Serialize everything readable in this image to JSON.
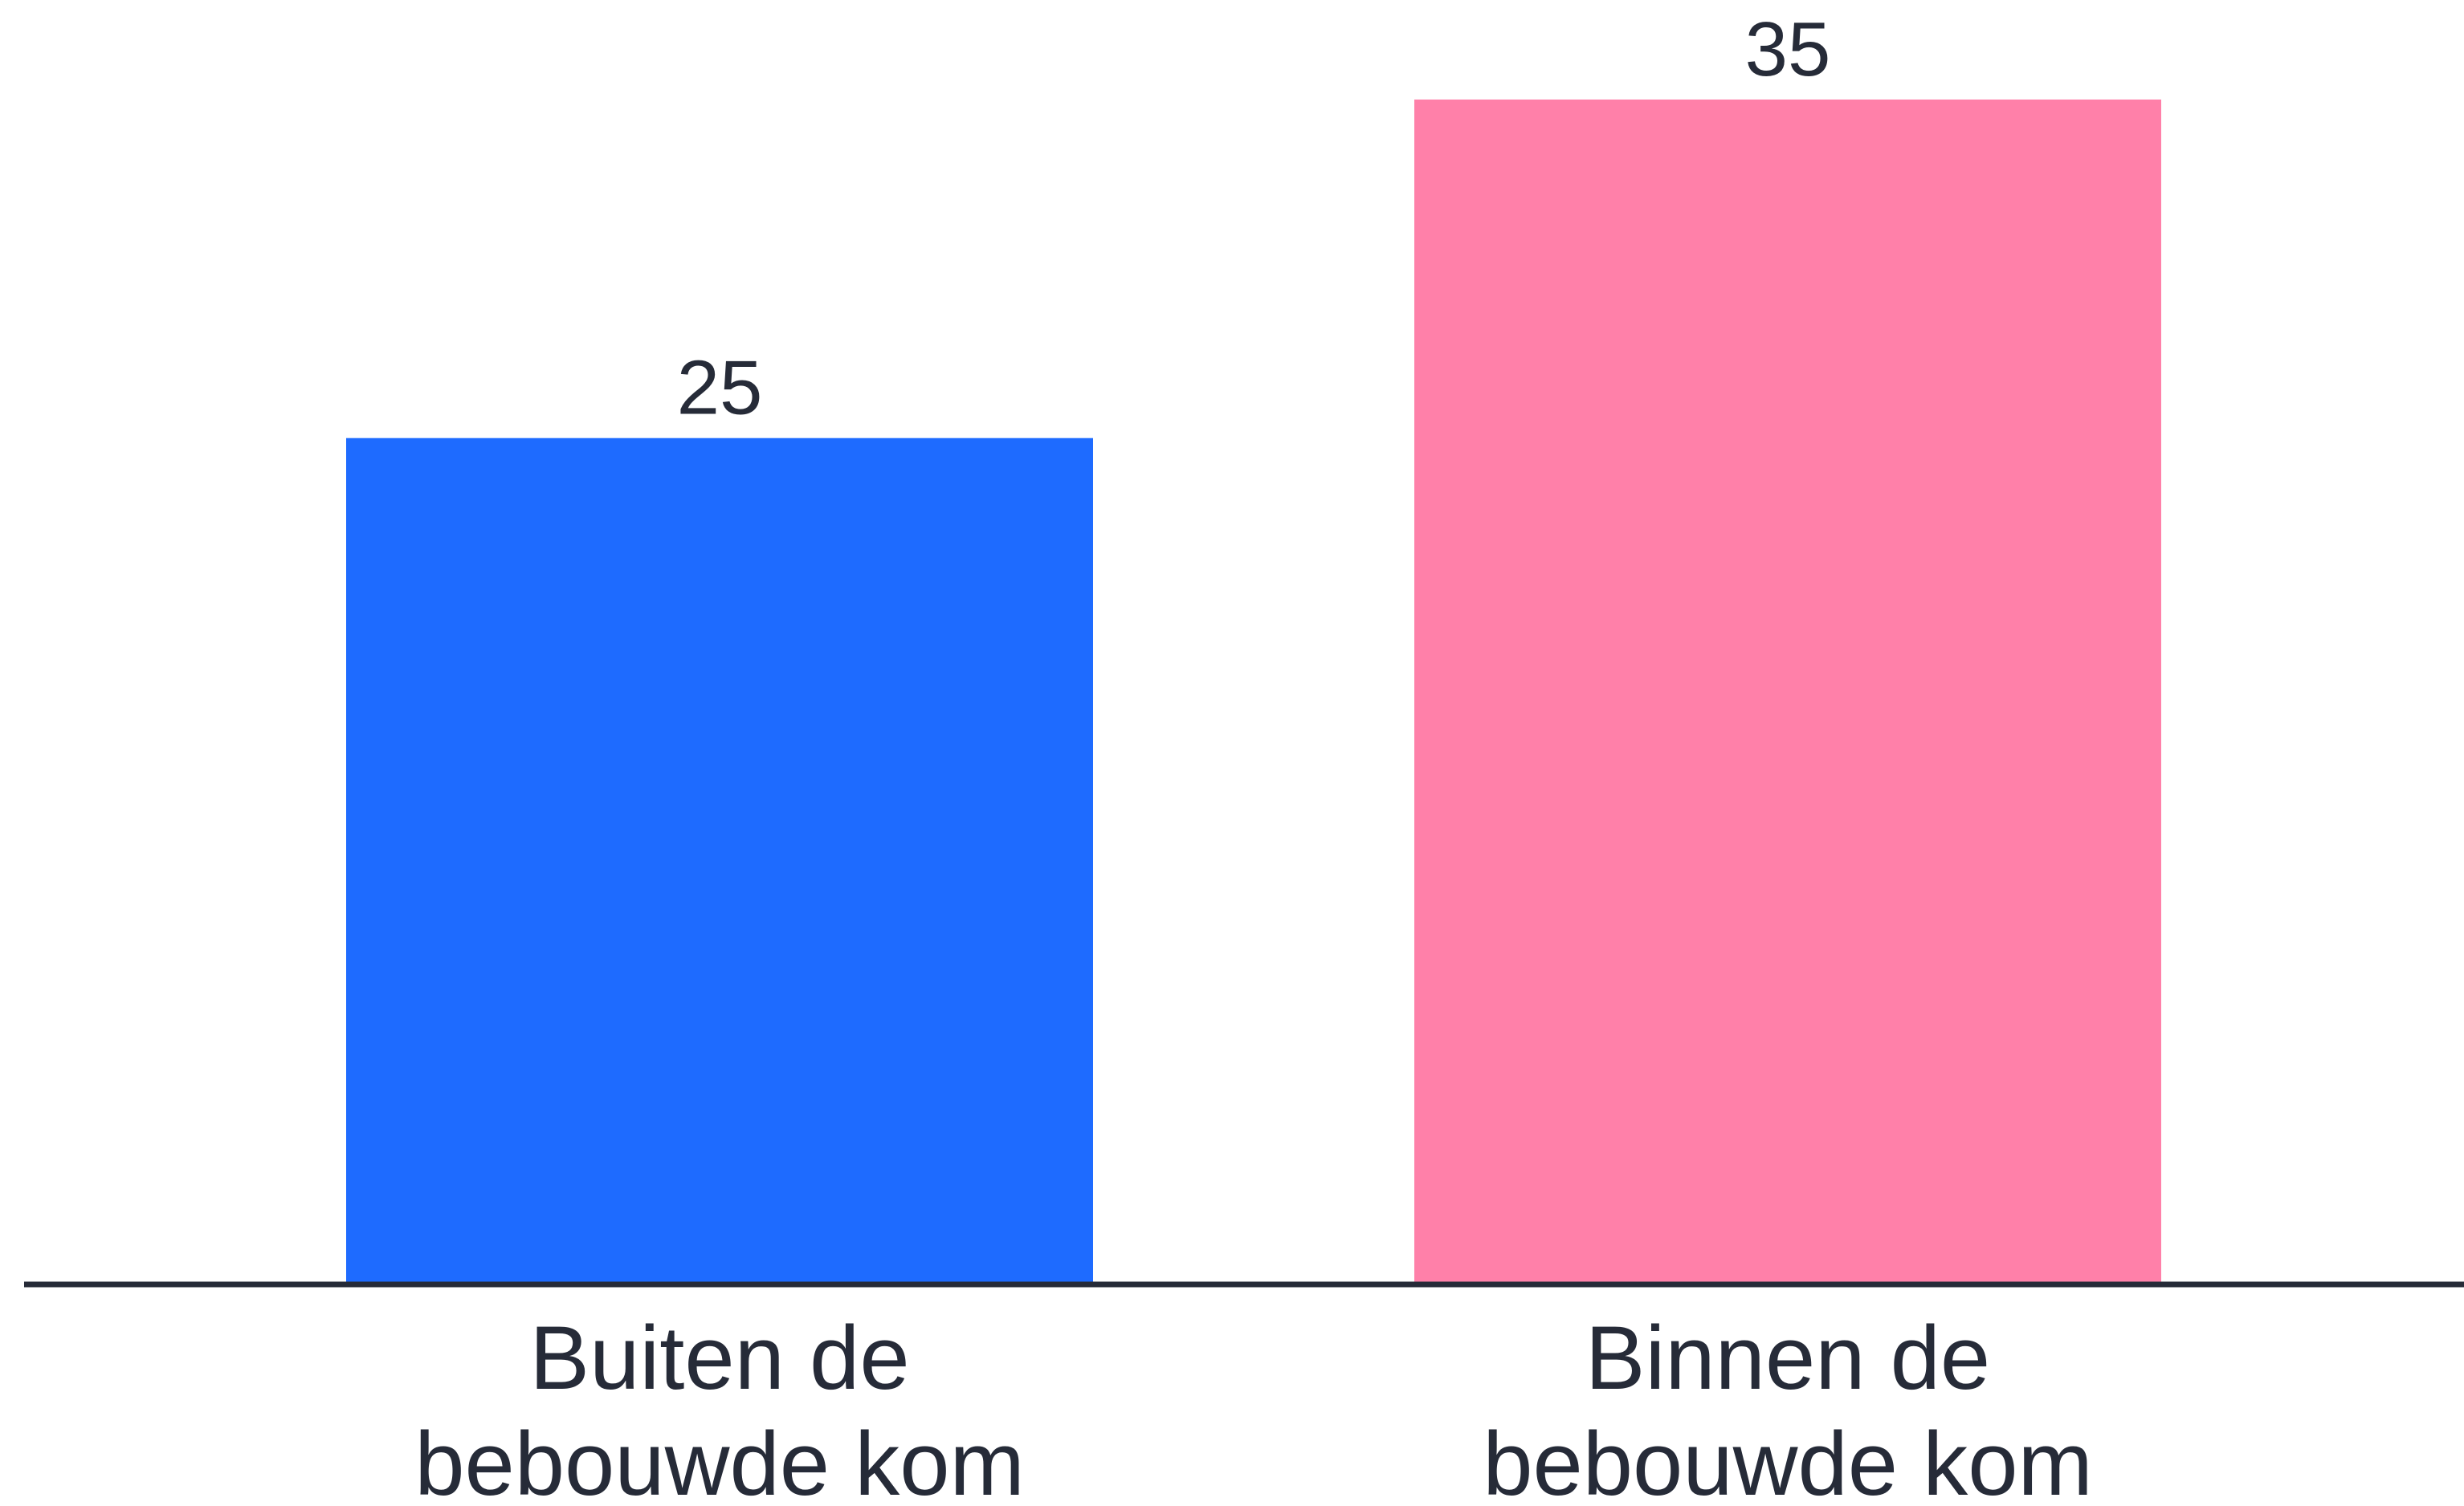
{
  "chart_data": {
    "type": "bar",
    "categories": [
      [
        "Buiten de",
        "bebouwde kom"
      ],
      [
        "Binnen de",
        "bebouwde kom"
      ]
    ],
    "values": [
      25,
      35
    ],
    "value_labels": [
      "25",
      "35"
    ],
    "colors": [
      "#1e6bff",
      "#ff80a9"
    ],
    "axis_color": "#262b38",
    "text_color": "#262b38",
    "title": "",
    "xlabel": "",
    "ylabel": "",
    "ylim": [
      0,
      35
    ],
    "grid": false,
    "legend": "none"
  }
}
